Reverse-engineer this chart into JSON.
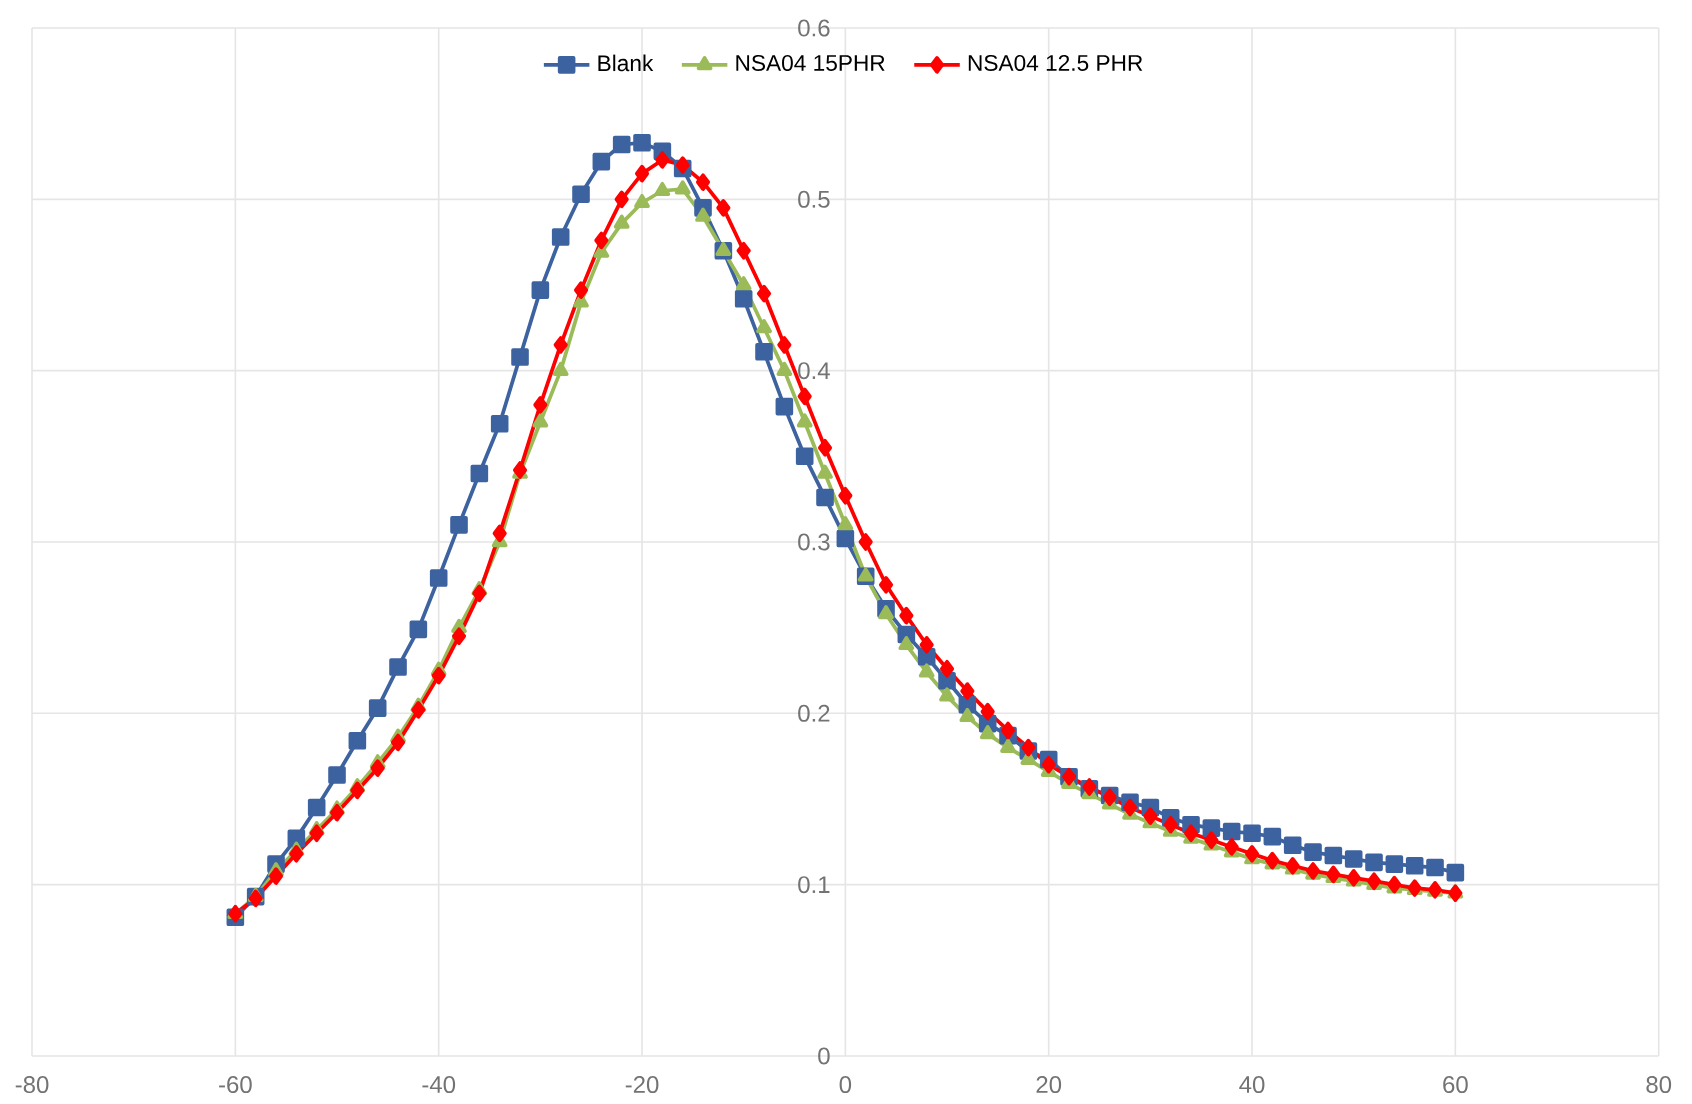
{
  "chart_data": {
    "type": "line",
    "x": [
      -60,
      -58,
      -56,
      -54,
      -52,
      -50,
      -48,
      -46,
      -44,
      -42,
      -40,
      -38,
      -36,
      -34,
      -32,
      -30,
      -28,
      -26,
      -24,
      -22,
      -20,
      -18,
      -16,
      -14,
      -12,
      -10,
      -8,
      -6,
      -4,
      -2,
      0,
      2,
      4,
      6,
      8,
      10,
      12,
      14,
      16,
      18,
      20,
      22,
      24,
      26,
      28,
      30,
      32,
      34,
      36,
      38,
      40,
      42,
      44,
      46,
      48,
      50,
      52,
      54,
      56,
      58,
      60
    ],
    "series": [
      {
        "name": "Blank",
        "color": "#3d62a0",
        "marker": "square",
        "values": [
          0.081,
          0.093,
          0.112,
          0.127,
          0.145,
          0.164,
          0.184,
          0.203,
          0.227,
          0.249,
          0.279,
          0.31,
          0.34,
          0.369,
          0.408,
          0.447,
          0.478,
          0.503,
          0.522,
          0.532,
          0.533,
          0.528,
          0.518,
          0.495,
          0.47,
          0.442,
          0.411,
          0.379,
          0.35,
          0.326,
          0.302,
          0.28,
          0.261,
          0.246,
          0.233,
          0.219,
          0.205,
          0.194,
          0.187,
          0.178,
          0.173,
          0.163,
          0.156,
          0.152,
          0.148,
          0.145,
          0.139,
          0.135,
          0.133,
          0.131,
          0.13,
          0.128,
          0.123,
          0.119,
          0.117,
          0.115,
          0.113,
          0.112,
          0.111,
          0.11,
          0.107
        ]
      },
      {
        "name": "NSA04 15PHR",
        "color": "#9bbb59",
        "marker": "triangle",
        "values": [
          0.083,
          0.093,
          0.108,
          0.12,
          0.132,
          0.144,
          0.157,
          0.171,
          0.186,
          0.204,
          0.225,
          0.25,
          0.272,
          0.3,
          0.34,
          0.37,
          0.4,
          0.44,
          0.469,
          0.486,
          0.498,
          0.505,
          0.506,
          0.49,
          0.47,
          0.45,
          0.425,
          0.4,
          0.37,
          0.34,
          0.31,
          0.28,
          0.258,
          0.24,
          0.224,
          0.21,
          0.198,
          0.188,
          0.18,
          0.173,
          0.166,
          0.159,
          0.153,
          0.147,
          0.141,
          0.136,
          0.131,
          0.127,
          0.123,
          0.119,
          0.115,
          0.112,
          0.109,
          0.106,
          0.104,
          0.102,
          0.1,
          0.098,
          0.097,
          0.096,
          0.095
        ]
      },
      {
        "name": "NSA04 12.5 PHR",
        "color": "#ff0000",
        "marker": "diamond",
        "values": [
          0.083,
          0.092,
          0.105,
          0.118,
          0.13,
          0.142,
          0.155,
          0.168,
          0.183,
          0.202,
          0.222,
          0.245,
          0.27,
          0.305,
          0.342,
          0.38,
          0.415,
          0.447,
          0.476,
          0.5,
          0.515,
          0.523,
          0.52,
          0.51,
          0.495,
          0.47,
          0.445,
          0.415,
          0.385,
          0.355,
          0.327,
          0.3,
          0.275,
          0.257,
          0.24,
          0.226,
          0.213,
          0.201,
          0.19,
          0.18,
          0.17,
          0.163,
          0.157,
          0.151,
          0.145,
          0.14,
          0.135,
          0.13,
          0.126,
          0.122,
          0.118,
          0.114,
          0.111,
          0.108,
          0.106,
          0.104,
          0.102,
          0.1,
          0.098,
          0.097,
          0.095
        ]
      }
    ],
    "xlim": [
      -80,
      80
    ],
    "xticks": [
      -80,
      -60,
      -40,
      -20,
      0,
      20,
      40,
      60,
      80
    ],
    "ylim": [
      0,
      0.6
    ],
    "yticks": [
      0,
      0.1,
      0.2,
      0.3,
      0.4,
      0.5,
      0.6
    ],
    "grid": true,
    "legend": "top"
  }
}
